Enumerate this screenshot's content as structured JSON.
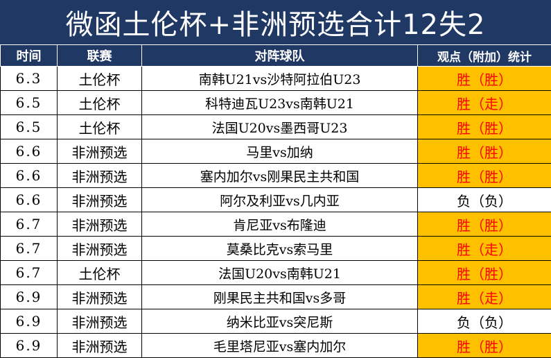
{
  "title": "微函土伦杯+非洲预选合计12失2",
  "headers": {
    "date": "时间",
    "league": "联赛",
    "match": "对阵球队",
    "result": "观点（附加）统计"
  },
  "colors": {
    "header_bg": "#1f3864",
    "win_bg": "#ffc000",
    "win_text": "#ff0000",
    "lose_text": "#000000"
  },
  "rows": [
    {
      "date": "6.3",
      "league": "土伦杯",
      "match": "南韩U21vs沙特阿拉伯U23",
      "result": "胜（胜）",
      "status": "win"
    },
    {
      "date": "6.5",
      "league": "土伦杯",
      "match": "科特迪瓦U23vs南韩U21",
      "result": "胜（走）",
      "status": "win"
    },
    {
      "date": "6.5",
      "league": "土伦杯",
      "match": "法国U20vs墨西哥U23",
      "result": "胜（胜）",
      "status": "win"
    },
    {
      "date": "6.6",
      "league": "非洲预选",
      "match": "马里vs加纳",
      "result": "胜（胜）",
      "status": "win"
    },
    {
      "date": "6.6",
      "league": "非洲预选",
      "match": "塞内加尔vs刚果民主共和国",
      "result": "胜（胜）",
      "status": "win"
    },
    {
      "date": "6.6",
      "league": "非洲预选",
      "match": "阿尔及利亚vs几内亚",
      "result": "负（负）",
      "status": "lose"
    },
    {
      "date": "6.7",
      "league": "非洲预选",
      "match": "肯尼亚vs布隆迪",
      "result": "胜（胜）",
      "status": "win"
    },
    {
      "date": "6.7",
      "league": "非洲预选",
      "match": "莫桑比克vs索马里",
      "result": "胜（走）",
      "status": "win"
    },
    {
      "date": "6.7",
      "league": "土伦杯",
      "match": "法国U20vs南韩U21",
      "result": "胜（胜）",
      "status": "win"
    },
    {
      "date": "6.9",
      "league": "非洲预选",
      "match": "刚果民主共和国vs多哥",
      "result": "胜（走）",
      "status": "win"
    },
    {
      "date": "6.9",
      "league": "非洲预选",
      "match": "纳米比亚vs突尼斯",
      "result": "负（负）",
      "status": "lose"
    },
    {
      "date": "6.9",
      "league": "非洲预选",
      "match": "毛里塔尼亚vs塞内加尔",
      "result": "胜（胜）",
      "status": "win"
    }
  ]
}
